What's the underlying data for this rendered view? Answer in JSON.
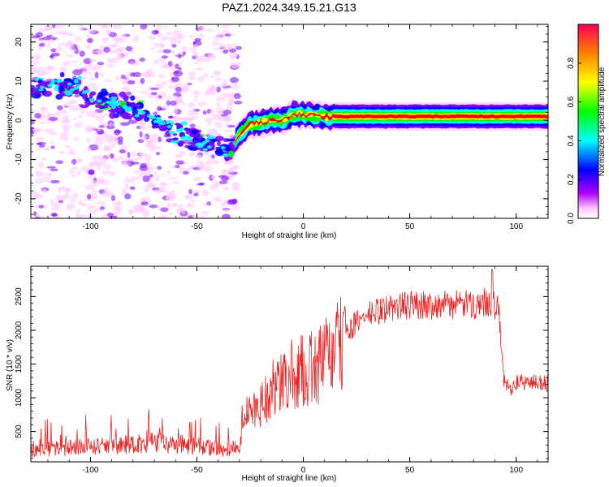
{
  "title": "PAZ1.2024.349.15.21.G13",
  "chart_data": [
    {
      "type": "heatmap",
      "xlabel": "Height of straight line (km)",
      "ylabel": "Frequency (Hz)",
      "xlim": [
        -128,
        115
      ],
      "ylim": [
        -25,
        24.5
      ],
      "xticks": [
        -100,
        -50,
        0,
        50,
        100
      ],
      "yticks": [
        -20,
        -10,
        0,
        10,
        20
      ],
      "colorbar": {
        "label": "Normalized spectral amplitude",
        "ticks": [
          0.0,
          0.2,
          0.4,
          0.6,
          0.8
        ],
        "range": [
          0,
          1
        ],
        "colormap": [
          "#ffffff",
          "#ffc8ff",
          "#7a00ff",
          "#0000ff",
          "#00ffff",
          "#00ff00",
          "#ffff00",
          "#ff8000",
          "#ff0000"
        ]
      },
      "ridge": {
        "x": [
          -128,
          -115,
          -105,
          -95,
          -85,
          -75,
          -65,
          -55,
          -45,
          -38,
          -34,
          -30,
          -25,
          -20,
          -15,
          -10,
          -5,
          0,
          10,
          20,
          30,
          40,
          50,
          60,
          70,
          80,
          90,
          95,
          100,
          105,
          110,
          115
        ],
        "y": [
          8,
          9,
          8,
          5.5,
          3.5,
          1.5,
          -1,
          -4,
          -6.5,
          -7.5,
          -7.5,
          -3.5,
          -1,
          -0.5,
          0,
          0,
          1.5,
          1.5,
          1,
          1,
          1,
          1,
          1,
          1,
          1,
          1,
          1,
          1,
          1,
          1,
          1,
          1
        ]
      }
    },
    {
      "type": "line",
      "xlabel": "Height of straight line (km)",
      "ylabel": "SNR (10 * v/v)",
      "xlim": [
        -128,
        115
      ],
      "ylim": [
        50,
        2950
      ],
      "xticks": [
        -100,
        -50,
        0,
        50,
        100
      ],
      "yticks": [
        500,
        1000,
        1500,
        2000,
        2500
      ],
      "color": "#ee2222",
      "series": [
        {
          "x": [
            -128,
            -110,
            -90,
            -70,
            -50,
            -35,
            -30,
            -28,
            -25,
            -20,
            -15,
            -10,
            -5,
            0,
            5,
            10,
            20,
            30,
            40,
            50,
            60,
            70,
            80,
            88,
            92,
            94,
            97,
            100,
            110,
            115
          ],
          "y": [
            230,
            270,
            300,
            360,
            300,
            230,
            300,
            950,
            820,
            1000,
            1200,
            1300,
            1450,
            1500,
            1550,
            1700,
            2000,
            2250,
            2350,
            2400,
            2400,
            2400,
            2400,
            2450,
            2300,
            1300,
            1150,
            1250,
            1250,
            1250
          ]
        }
      ]
    }
  ]
}
